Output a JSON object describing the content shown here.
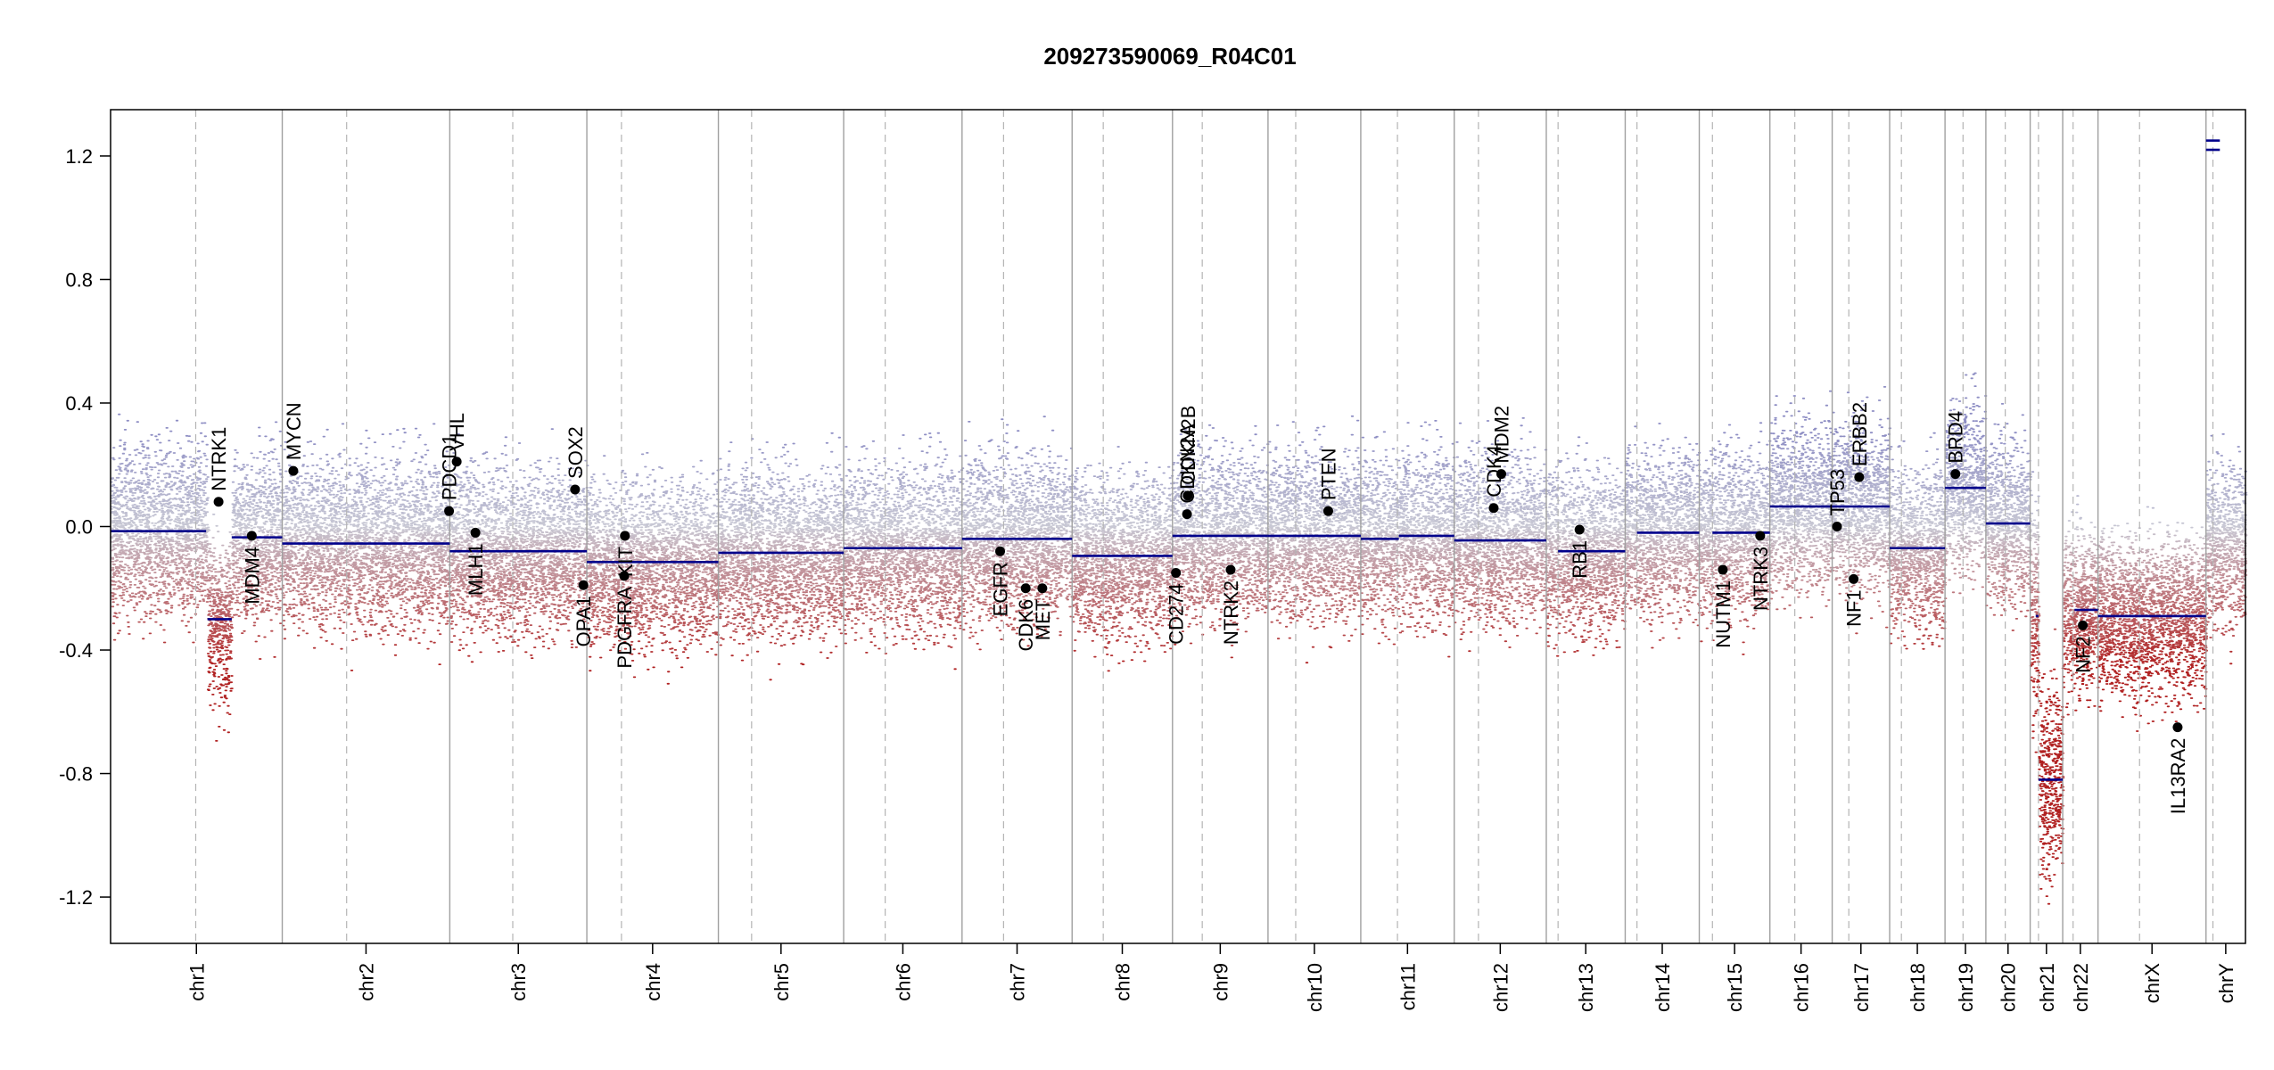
{
  "chart_data": {
    "type": "scatter",
    "title": "209273590069_R04C01",
    "xlabel": "",
    "ylabel": "",
    "ylim": [
      -1.35,
      1.35
    ],
    "yticks": [
      -1.2,
      -0.8,
      -0.4,
      0.0,
      0.4,
      0.8,
      1.2
    ],
    "ytick_labels": [
      "-1.2",
      "-0.8",
      "-0.4",
      "0.0",
      "0.4",
      "0.8",
      "1.2"
    ],
    "x_axis": "genome position (chromosomes concatenated)",
    "colors": {
      "gain_points": "#8e8ec4",
      "loss_points": "#b02020",
      "neutral_points": "#c8c8d4",
      "segment": "#00008b",
      "chrom_separator": "#a0a0a0",
      "centromere": "#b4b4b4",
      "gene_marker": "#000000"
    },
    "chromosomes": [
      {
        "name": "chr1",
        "length": 248,
        "centromere": 123,
        "segments": [
          {
            "from": 0,
            "to": 138,
            "y": -0.015
          },
          {
            "from": 140,
            "to": 175,
            "y": -0.3
          },
          {
            "from": 175,
            "to": 248,
            "y": -0.035
          }
        ]
      },
      {
        "name": "chr2",
        "length": 242,
        "centromere": 93,
        "segments": [
          {
            "from": 0,
            "to": 242,
            "y": -0.055
          }
        ]
      },
      {
        "name": "chr3",
        "length": 198,
        "centromere": 91,
        "segments": [
          {
            "from": 0,
            "to": 198,
            "y": -0.08
          }
        ]
      },
      {
        "name": "chr4",
        "length": 190,
        "centromere": 50,
        "segments": [
          {
            "from": 0,
            "to": 50,
            "y": -0.115
          },
          {
            "from": 50,
            "to": 190,
            "y": -0.115
          }
        ]
      },
      {
        "name": "chr5",
        "length": 181,
        "centromere": 48,
        "segments": [
          {
            "from": 0,
            "to": 181,
            "y": -0.085
          }
        ]
      },
      {
        "name": "chr6",
        "length": 171,
        "centromere": 60,
        "segments": [
          {
            "from": 0,
            "to": 171,
            "y": -0.07
          }
        ]
      },
      {
        "name": "chr7",
        "length": 159,
        "centromere": 60,
        "segments": [
          {
            "from": 0,
            "to": 159,
            "y": -0.04
          }
        ]
      },
      {
        "name": "chr8",
        "length": 145,
        "centromere": 45,
        "segments": [
          {
            "from": 0,
            "to": 145,
            "y": -0.095
          }
        ]
      },
      {
        "name": "chr9",
        "length": 138,
        "centromere": 43,
        "segments": [
          {
            "from": 0,
            "to": 138,
            "y": -0.03
          }
        ]
      },
      {
        "name": "chr10",
        "length": 134,
        "centromere": 40,
        "segments": [
          {
            "from": 0,
            "to": 134,
            "y": -0.03
          }
        ]
      },
      {
        "name": "chr11",
        "length": 135,
        "centromere": 53,
        "segments": [
          {
            "from": 0,
            "to": 55,
            "y": -0.04
          },
          {
            "from": 55,
            "to": 135,
            "y": -0.03
          }
        ]
      },
      {
        "name": "chr12",
        "length": 133,
        "centromere": 35,
        "segments": [
          {
            "from": 0,
            "to": 133,
            "y": -0.045
          }
        ]
      },
      {
        "name": "chr13",
        "length": 114,
        "centromere": 17,
        "segments": [
          {
            "from": 17,
            "to": 114,
            "y": -0.08
          }
        ]
      },
      {
        "name": "chr14",
        "length": 107,
        "centromere": 17,
        "segments": [
          {
            "from": 17,
            "to": 107,
            "y": -0.02
          }
        ]
      },
      {
        "name": "chr15",
        "length": 102,
        "centromere": 19,
        "segments": [
          {
            "from": 19,
            "to": 102,
            "y": -0.02
          }
        ]
      },
      {
        "name": "chr16",
        "length": 90,
        "centromere": 36,
        "segments": [
          {
            "from": 0,
            "to": 90,
            "y": 0.065
          }
        ]
      },
      {
        "name": "chr17",
        "length": 83,
        "centromere": 24,
        "segments": [
          {
            "from": 0,
            "to": 83,
            "y": 0.065
          }
        ]
      },
      {
        "name": "chr18",
        "length": 80,
        "centromere": 17,
        "segments": [
          {
            "from": 0,
            "to": 80,
            "y": -0.07
          }
        ]
      },
      {
        "name": "chr19",
        "length": 59,
        "centromere": 26,
        "segments": [
          {
            "from": 0,
            "to": 59,
            "y": 0.125
          }
        ]
      },
      {
        "name": "chr20",
        "length": 64,
        "centromere": 28,
        "segments": [
          {
            "from": 0,
            "to": 64,
            "y": 0.01
          }
        ]
      },
      {
        "name": "chr21",
        "length": 47,
        "centromere": 12,
        "segments": [
          {
            "from": 8,
            "to": 12,
            "y": -0.29
          },
          {
            "from": 12,
            "to": 47,
            "y": -0.82
          }
        ]
      },
      {
        "name": "chr22",
        "length": 51,
        "centromere": 15,
        "segments": [
          {
            "from": 17,
            "to": 51,
            "y": -0.27
          }
        ]
      },
      {
        "name": "chrX",
        "length": 156,
        "centromere": 60,
        "segments": [
          {
            "from": 0,
            "to": 156,
            "y": -0.29
          }
        ]
      },
      {
        "name": "chrY",
        "length": 57,
        "centromere": 10,
        "segments": [
          {
            "from": 0,
            "to": 20,
            "y": 1.25
          },
          {
            "from": 0,
            "to": 20,
            "y": 1.22
          }
        ]
      }
    ],
    "genes": [
      {
        "name": "NTRK1",
        "chrom": "chr1",
        "pos": 156,
        "y": 0.08
      },
      {
        "name": "MDM4",
        "chrom": "chr1",
        "pos": 204,
        "y": -0.03
      },
      {
        "name": "MYCN",
        "chrom": "chr2",
        "pos": 16,
        "y": 0.18
      },
      {
        "name": "PDCD1",
        "chrom": "chr2",
        "pos": 241,
        "y": 0.05
      },
      {
        "name": "VHL",
        "chrom": "chr3",
        "pos": 10,
        "y": 0.21
      },
      {
        "name": "MLH1",
        "chrom": "chr3",
        "pos": 37,
        "y": -0.02
      },
      {
        "name": "SOX2",
        "chrom": "chr3",
        "pos": 181,
        "y": 0.12
      },
      {
        "name": "OPA1",
        "chrom": "chr3",
        "pos": 193,
        "y": -0.19
      },
      {
        "name": "PDGFRA",
        "chrom": "chr4",
        "pos": 54,
        "y": -0.16
      },
      {
        "name": "KIT",
        "chrom": "chr4",
        "pos": 55,
        "y": -0.03
      },
      {
        "name": "EGFR",
        "chrom": "chr7",
        "pos": 55,
        "y": -0.08
      },
      {
        "name": "CDK6",
        "chrom": "chr7",
        "pos": 92,
        "y": -0.2
      },
      {
        "name": "MET",
        "chrom": "chr7",
        "pos": 116,
        "y": -0.2
      },
      {
        "name": "CD274",
        "chrom": "chr9",
        "pos": 5,
        "y": -0.15
      },
      {
        "name": "CDKN2A",
        "chrom": "chr9",
        "pos": 21,
        "y": 0.04
      },
      {
        "name": "CDKN2B",
        "chrom": "chr9",
        "pos": 22,
        "y": 0.1
      },
      {
        "name": "NTRK2",
        "chrom": "chr9",
        "pos": 84,
        "y": -0.14
      },
      {
        "name": "PTEN",
        "chrom": "chr10",
        "pos": 87,
        "y": 0.05
      },
      {
        "name": "CDK4",
        "chrom": "chr12",
        "pos": 57,
        "y": 0.06
      },
      {
        "name": "MDM2",
        "chrom": "chr12",
        "pos": 68,
        "y": 0.17
      },
      {
        "name": "RB1",
        "chrom": "chr13",
        "pos": 48,
        "y": -0.01
      },
      {
        "name": "NUTM1",
        "chrom": "chr15",
        "pos": 34,
        "y": -0.14
      },
      {
        "name": "NTRK3",
        "chrom": "chr15",
        "pos": 88,
        "y": -0.03
      },
      {
        "name": "TP53",
        "chrom": "chr17",
        "pos": 7,
        "y": 0.0
      },
      {
        "name": "NF1",
        "chrom": "chr17",
        "pos": 31,
        "y": -0.17
      },
      {
        "name": "ERBB2",
        "chrom": "chr17",
        "pos": 39,
        "y": 0.16
      },
      {
        "name": "BRD4",
        "chrom": "chr19",
        "pos": 15,
        "y": 0.17
      },
      {
        "name": "NF2",
        "chrom": "chr22",
        "pos": 29,
        "y": -0.32
      },
      {
        "name": "IL13RA2",
        "chrom": "chrX",
        "pos": 115,
        "y": -0.65
      }
    ]
  }
}
